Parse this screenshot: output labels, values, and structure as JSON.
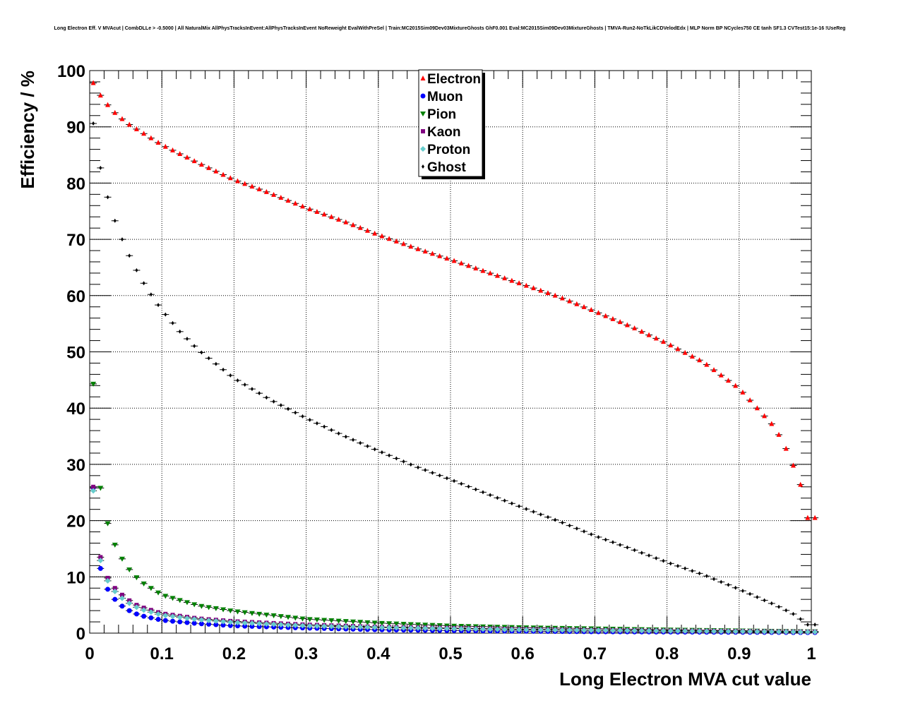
{
  "chart_data": {
    "type": "scatter",
    "title": "Long Electron Eff. V MVAcut | CombDLLe > -0.5000 | All NaturalMix AllPhysTracksInEvent:AllPhysTracksInEvent NoReweight EvalWithPreSel | Train:MC2015Sim09Dev03MixtureGhosts GhF0.001 Eval:MC2015Sim09Dev03MixtureGhosts | TMVA-Run2-NoTkLikCDVelodEdx | MLP Norm BP NCycles750 CE tanh SF1.3 CVTest15:1e-16 !UseReg",
    "xlabel": "Long Electron MVA cut value",
    "ylabel": "Efficiency / %",
    "xlim": [
      0,
      1
    ],
    "ylim": [
      0,
      100
    ],
    "x_ticks": [
      "0",
      "0.1",
      "0.2",
      "0.3",
      "0.4",
      "0.5",
      "0.6",
      "0.7",
      "0.8",
      "0.9",
      "1"
    ],
    "y_ticks": [
      "0",
      "10",
      "20",
      "30",
      "40",
      "50",
      "60",
      "70",
      "80",
      "90",
      "100"
    ],
    "grid": true,
    "legend_position": "top-center",
    "point_spacing": 0.01,
    "x_first": 0.005,
    "series": [
      {
        "name": "Electron",
        "marker": "triangle-up",
        "color": "#ff0000",
        "anchors": [
          [
            0.005,
            97.8
          ],
          [
            0.015,
            95.6
          ],
          [
            0.025,
            93.9
          ],
          [
            0.035,
            92.5
          ],
          [
            0.045,
            91.4
          ],
          [
            0.055,
            90.4
          ],
          [
            0.075,
            88.8
          ],
          [
            0.1,
            86.8
          ],
          [
            0.15,
            83.6
          ],
          [
            0.2,
            80.6
          ],
          [
            0.25,
            78.2
          ],
          [
            0.3,
            75.6
          ],
          [
            0.35,
            73.3
          ],
          [
            0.4,
            70.8
          ],
          [
            0.45,
            68.5
          ],
          [
            0.5,
            66.4
          ],
          [
            0.55,
            64.2
          ],
          [
            0.6,
            62.0
          ],
          [
            0.65,
            59.8
          ],
          [
            0.7,
            57.2
          ],
          [
            0.75,
            54.5
          ],
          [
            0.8,
            51.5
          ],
          [
            0.85,
            48.2
          ],
          [
            0.9,
            43.5
          ],
          [
            0.925,
            40.0
          ],
          [
            0.95,
            36.5
          ],
          [
            0.965,
            32.8
          ],
          [
            0.975,
            29.8
          ],
          [
            0.985,
            26.4
          ],
          [
            0.995,
            20.5
          ]
        ]
      },
      {
        "name": "Muon",
        "marker": "circle",
        "color": "#0000ff",
        "anchors": [
          [
            0.005,
            25.8
          ],
          [
            0.015,
            11.5
          ],
          [
            0.025,
            7.8
          ],
          [
            0.035,
            6.0
          ],
          [
            0.045,
            4.8
          ],
          [
            0.055,
            4.0
          ],
          [
            0.065,
            3.4
          ],
          [
            0.075,
            3.0
          ],
          [
            0.1,
            2.3
          ],
          [
            0.15,
            1.7
          ],
          [
            0.2,
            1.3
          ],
          [
            0.3,
            0.9
          ],
          [
            0.4,
            0.6
          ],
          [
            0.5,
            0.45
          ],
          [
            0.6,
            0.35
          ],
          [
            0.7,
            0.25
          ],
          [
            0.8,
            0.2
          ],
          [
            0.9,
            0.15
          ],
          [
            0.995,
            0.1
          ]
        ]
      },
      {
        "name": "Pion",
        "marker": "triangle-down",
        "color": "#008000",
        "anchors": [
          [
            0.005,
            44.3
          ],
          [
            0.015,
            25.8
          ],
          [
            0.025,
            19.5
          ],
          [
            0.035,
            15.7
          ],
          [
            0.045,
            13.2
          ],
          [
            0.055,
            11.3
          ],
          [
            0.065,
            9.9
          ],
          [
            0.075,
            8.8
          ],
          [
            0.1,
            6.8
          ],
          [
            0.15,
            4.9
          ],
          [
            0.2,
            3.9
          ],
          [
            0.3,
            2.5
          ],
          [
            0.4,
            1.8
          ],
          [
            0.5,
            1.3
          ],
          [
            0.6,
            1.0
          ],
          [
            0.7,
            0.8
          ],
          [
            0.8,
            0.6
          ],
          [
            0.9,
            0.45
          ],
          [
            0.995,
            0.3
          ]
        ]
      },
      {
        "name": "Kaon",
        "marker": "square",
        "color": "#800080",
        "anchors": [
          [
            0.005,
            26.0
          ],
          [
            0.015,
            13.5
          ],
          [
            0.025,
            9.8
          ],
          [
            0.035,
            8.0
          ],
          [
            0.045,
            6.8
          ],
          [
            0.055,
            5.8
          ],
          [
            0.065,
            5.0
          ],
          [
            0.075,
            4.5
          ],
          [
            0.1,
            3.5
          ],
          [
            0.15,
            2.6
          ],
          [
            0.2,
            2.1
          ],
          [
            0.3,
            1.5
          ],
          [
            0.4,
            1.1
          ],
          [
            0.5,
            0.9
          ],
          [
            0.6,
            0.7
          ],
          [
            0.7,
            0.55
          ],
          [
            0.8,
            0.45
          ],
          [
            0.9,
            0.35
          ],
          [
            0.995,
            0.25
          ]
        ]
      },
      {
        "name": "Proton",
        "marker": "diamond",
        "color": "#66cccc",
        "anchors": [
          [
            0.005,
            25.3
          ],
          [
            0.015,
            12.9
          ],
          [
            0.025,
            9.3
          ],
          [
            0.035,
            7.4
          ],
          [
            0.045,
            6.2
          ],
          [
            0.055,
            5.3
          ],
          [
            0.065,
            4.6
          ],
          [
            0.075,
            4.1
          ],
          [
            0.1,
            3.2
          ],
          [
            0.15,
            2.4
          ],
          [
            0.2,
            1.9
          ],
          [
            0.3,
            1.3
          ],
          [
            0.4,
            1.0
          ],
          [
            0.5,
            0.8
          ],
          [
            0.6,
            0.6
          ],
          [
            0.7,
            0.5
          ],
          [
            0.8,
            0.4
          ],
          [
            0.9,
            0.3
          ],
          [
            0.995,
            0.2
          ]
        ]
      },
      {
        "name": "Ghost",
        "marker": "small-diamond",
        "color": "#000000",
        "anchors": [
          [
            0.005,
            90.6
          ],
          [
            0.015,
            82.7
          ],
          [
            0.025,
            77.5
          ],
          [
            0.035,
            73.3
          ],
          [
            0.045,
            70.0
          ],
          [
            0.055,
            67.1
          ],
          [
            0.065,
            64.5
          ],
          [
            0.075,
            62.2
          ],
          [
            0.085,
            60.2
          ],
          [
            0.1,
            57.4
          ],
          [
            0.125,
            53.6
          ],
          [
            0.15,
            50.4
          ],
          [
            0.2,
            45.3
          ],
          [
            0.25,
            41.5
          ],
          [
            0.3,
            38.2
          ],
          [
            0.35,
            35.2
          ],
          [
            0.4,
            32.4
          ],
          [
            0.45,
            29.7
          ],
          [
            0.5,
            27.3
          ],
          [
            0.55,
            24.8
          ],
          [
            0.6,
            22.3
          ],
          [
            0.65,
            19.9
          ],
          [
            0.7,
            17.3
          ],
          [
            0.75,
            15.0
          ],
          [
            0.8,
            12.6
          ],
          [
            0.85,
            10.4
          ],
          [
            0.9,
            7.8
          ],
          [
            0.95,
            5.0
          ],
          [
            0.975,
            3.4
          ],
          [
            0.985,
            2.5
          ],
          [
            0.995,
            1.5
          ]
        ]
      }
    ]
  }
}
